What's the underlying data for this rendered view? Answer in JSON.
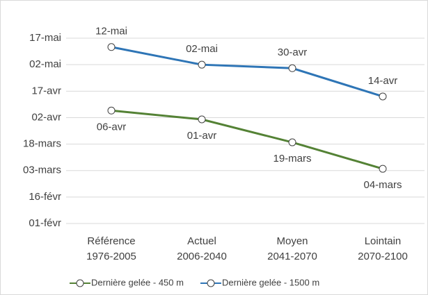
{
  "chart_data": {
    "type": "line",
    "categories": [
      [
        "Référence",
        "1976-2005"
      ],
      [
        "Actuel",
        "2006-2040"
      ],
      [
        "Moyen",
        "2041-2070"
      ],
      [
        "Lointain",
        "2070-2100"
      ]
    ],
    "series": [
      {
        "name": "Dernière gelée - 450 m",
        "color": "#548235",
        "values": [
          96,
          91,
          78,
          63
        ],
        "value_labels": [
          "06-avr",
          "01-avr",
          "19-mars",
          "04-mars"
        ]
      },
      {
        "name": "Dernière gelée - 1500 m",
        "color": "#2e75b6",
        "values": [
          132,
          122,
          120,
          104
        ],
        "value_labels": [
          "12-mai",
          "02-mai",
          "30-avr",
          "14-avr"
        ]
      }
    ],
    "ylim": [
      32,
      150
    ],
    "yticks": [
      {
        "value": 32,
        "label": "01-févr"
      },
      {
        "value": 47,
        "label": "16-févr"
      },
      {
        "value": 62,
        "label": "03-mars"
      },
      {
        "value": 77,
        "label": "18-mars"
      },
      {
        "value": 92,
        "label": "02-avr"
      },
      {
        "value": 107,
        "label": "17-avr"
      },
      {
        "value": 122,
        "label": "02-mai"
      },
      {
        "value": 137,
        "label": "17-mai"
      }
    ],
    "grid": true,
    "legend": "bottom"
  }
}
